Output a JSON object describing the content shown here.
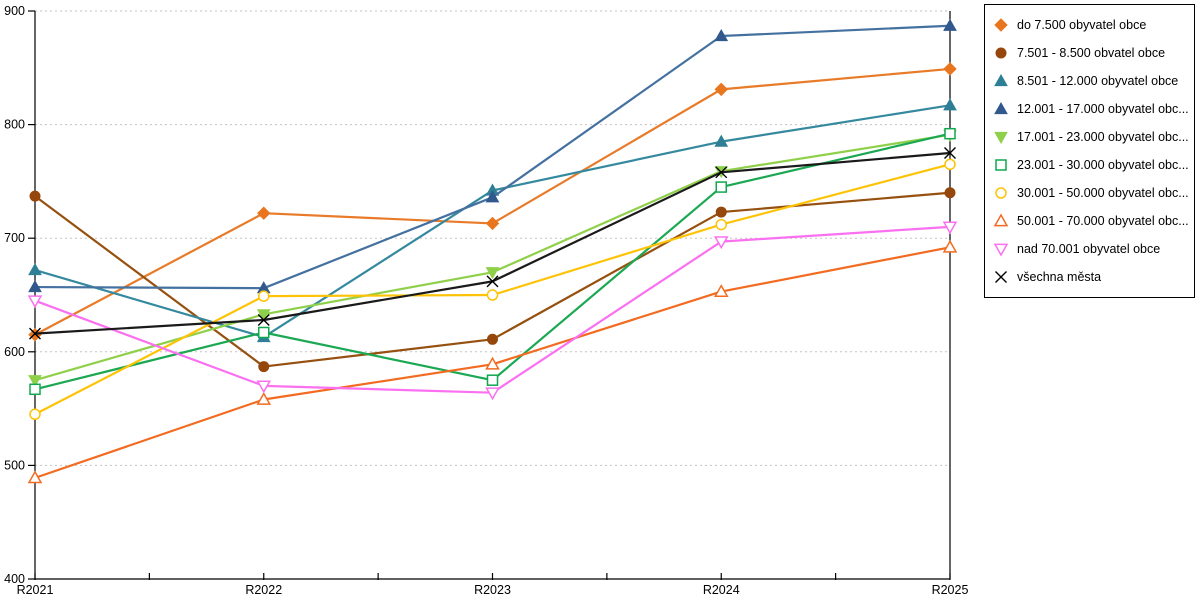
{
  "chart_data": {
    "type": "line",
    "title": "",
    "xlabel": "",
    "ylabel": "",
    "x_categories": [
      "R2021",
      "R2022",
      "R2023",
      "R2024",
      "R2025"
    ],
    "ylim": [
      400,
      900
    ],
    "y_ticks": [
      400,
      500,
      600,
      700,
      800,
      900
    ],
    "grid": "horizontal-dotted",
    "gridline_color": "#c3c3c3",
    "axis_color": "#000000",
    "legend_position": "right",
    "series": [
      {
        "name": "do 7.500 obyvatel obce",
        "marker": "diamond",
        "fill": "solid",
        "marker_color": "#e8761e",
        "line_color": "#e87a28",
        "values": [
          615,
          722,
          713,
          831,
          849
        ]
      },
      {
        "name": "7.501 - 8.500 obvatel obce",
        "marker": "circle",
        "fill": "solid",
        "marker_color": "#96470c",
        "line_color": "#96500f",
        "values": [
          737,
          587,
          611,
          723,
          740
        ]
      },
      {
        "name": "8.501 - 12.000 obyvatel obce",
        "marker": "triangle-up",
        "fill": "solid",
        "marker_color": "#2e7f96",
        "line_color": "#35899e",
        "values": [
          672,
          613,
          742,
          785,
          817
        ]
      },
      {
        "name": "12.001 - 17.000 obyvatel obc...",
        "marker": "triangle-up",
        "fill": "solid",
        "marker_color": "#31598e",
        "line_color": "#44719f",
        "values": [
          657,
          656,
          736,
          878,
          887
        ]
      },
      {
        "name": "17.001 - 23.000 obyvatel obc...",
        "marker": "triangle-down",
        "fill": "solid",
        "marker_color": "#8fd04a",
        "line_color": "#8fd04a",
        "values": [
          575,
          633,
          670,
          759,
          791
        ]
      },
      {
        "name": "23.001 - 30.000 obyvatel obc...",
        "marker": "square",
        "fill": "open",
        "marker_color": "#10a74f",
        "line_color": "#1ca853",
        "values": [
          567,
          617,
          575,
          745,
          792
        ]
      },
      {
        "name": "30.001 - 50.000 obyvatel obc...",
        "marker": "circle",
        "fill": "open",
        "marker_color": "#fdc306",
        "line_color": "#fdc306",
        "values": [
          545,
          649,
          650,
          712,
          765
        ]
      },
      {
        "name": "50.001 - 70.000 obyvatel obc...",
        "marker": "triangle-up",
        "fill": "open",
        "marker_color": "#f26b21",
        "line_color": "#f26b21",
        "values": [
          489,
          558,
          589,
          653,
          692
        ]
      },
      {
        "name": "nad 70.001 obyvatel obce",
        "marker": "triangle-down",
        "fill": "open",
        "marker_color": "#fa70f0",
        "line_color": "#fa70f0",
        "values": [
          645,
          570,
          564,
          697,
          710
        ]
      },
      {
        "name": "všechna města",
        "marker": "x-cross",
        "fill": "solid",
        "marker_color": "#000000",
        "line_color": "#1a1a1a",
        "values": [
          616,
          628,
          662,
          758,
          775
        ]
      }
    ]
  }
}
